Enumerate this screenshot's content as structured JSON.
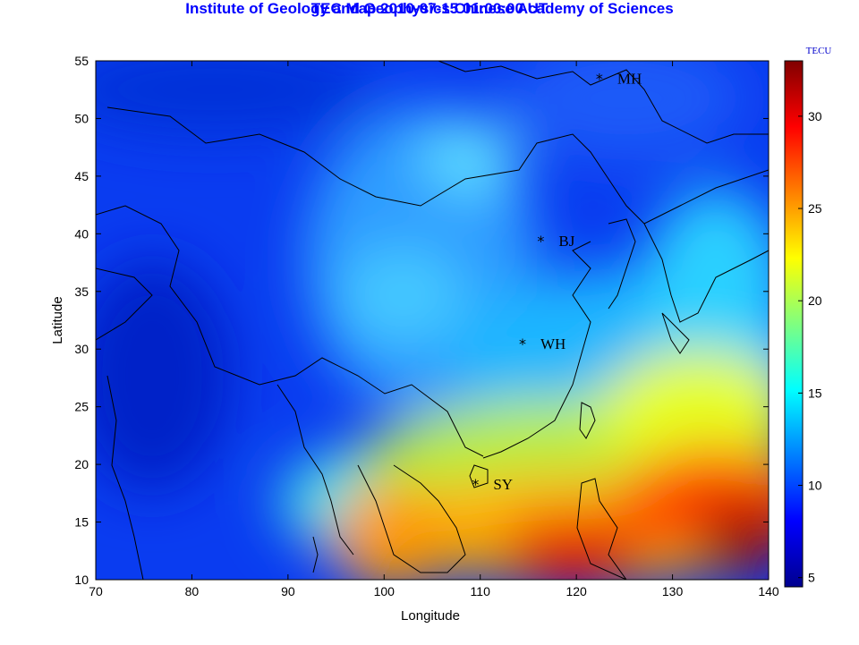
{
  "title": {
    "line1": "TEC Map 2010-07-15 01:00:00 UT",
    "line2": "Institute of Geology and Geophysics Chinese Academy of Sciences"
  },
  "axes": {
    "xlabel": "Longitude",
    "ylabel": "Latitude",
    "xlim": [
      70,
      140
    ],
    "ylim": [
      10,
      55
    ],
    "xticks": [
      "70",
      "80",
      "90",
      "100",
      "110",
      "120",
      "130",
      "140"
    ],
    "yticks": [
      "10",
      "15",
      "20",
      "25",
      "30",
      "35",
      "40",
      "45",
      "50",
      "55"
    ]
  },
  "colorbar": {
    "unit": "TECU",
    "range": [
      4.5,
      33
    ],
    "ticks": [
      "5",
      "10",
      "15",
      "20",
      "25",
      "30"
    ],
    "colormap": "jet"
  },
  "stations": [
    {
      "name": "MH",
      "lon": 122.4,
      "lat": 53.5
    },
    {
      "name": "BJ",
      "lon": 116.3,
      "lat": 39.4
    },
    {
      "name": "WH",
      "lon": 114.4,
      "lat": 30.5
    },
    {
      "name": "SY",
      "lon": 109.5,
      "lat": 18.3
    }
  ],
  "overlay": {
    "coastlines": true,
    "borders": true
  },
  "colors": {
    "title": "#0000ff",
    "frame": "#000000"
  }
}
